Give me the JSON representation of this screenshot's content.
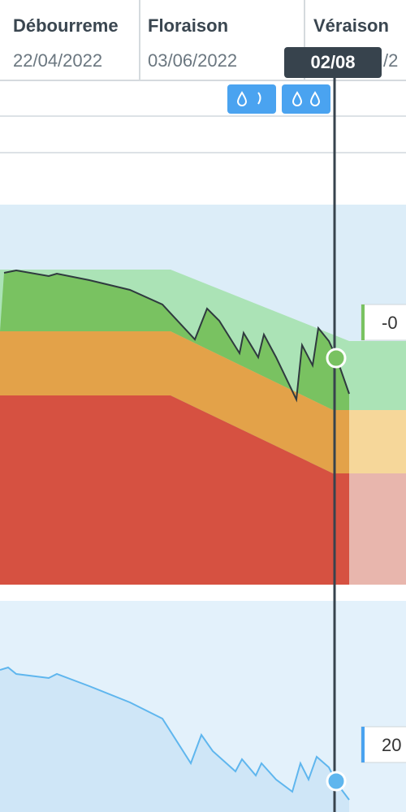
{
  "header": {
    "columns": [
      {
        "title": "Débourreme",
        "date": "22/04/2022"
      },
      {
        "title": "Floraison",
        "date": "03/06/2022"
      },
      {
        "title": "Véraison",
        "date": "/2"
      }
    ]
  },
  "tooltip": "02/08",
  "labels": [
    "-0",
    "20"
  ]
}
